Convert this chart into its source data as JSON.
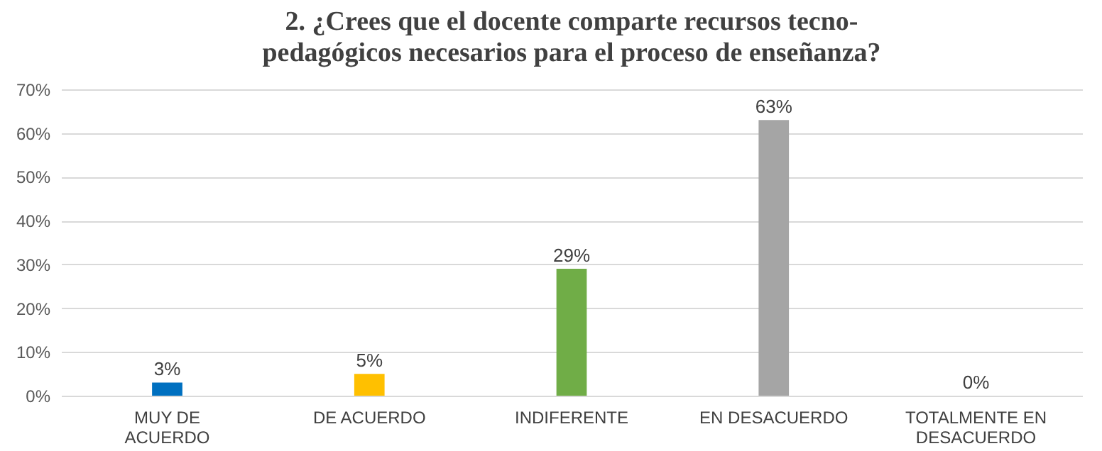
{
  "chart_data": {
    "type": "bar",
    "title": "2. ¿Crees que el docente comparte recursos tecno-\npedagógicos necesarios para el proceso de enseñanza?",
    "categories": [
      "MUY DE ACUERDO",
      "DE ACUERDO",
      "INDIFERENTE",
      "EN DESACUERDO",
      "TOTALMENTE EN DESACUERDO"
    ],
    "values": [
      3,
      5,
      29,
      63,
      0
    ],
    "colors": [
      "#0070c0",
      "#ffc000",
      "#70ad47",
      "#a5a5a5",
      "#7f7f7f"
    ],
    "value_labels": [
      "3%",
      "5%",
      "29%",
      "63%",
      "0%"
    ],
    "ylim": [
      0,
      70
    ],
    "yticks": [
      {
        "value": 0,
        "label": "0%"
      },
      {
        "value": 10,
        "label": "10%"
      },
      {
        "value": 20,
        "label": "20%"
      },
      {
        "value": 30,
        "label": "30%"
      },
      {
        "value": 40,
        "label": "40%"
      },
      {
        "value": 50,
        "label": "50%"
      },
      {
        "value": 60,
        "label": "60%"
      },
      {
        "value": 70,
        "label": "70%"
      }
    ],
    "grid": "y"
  }
}
